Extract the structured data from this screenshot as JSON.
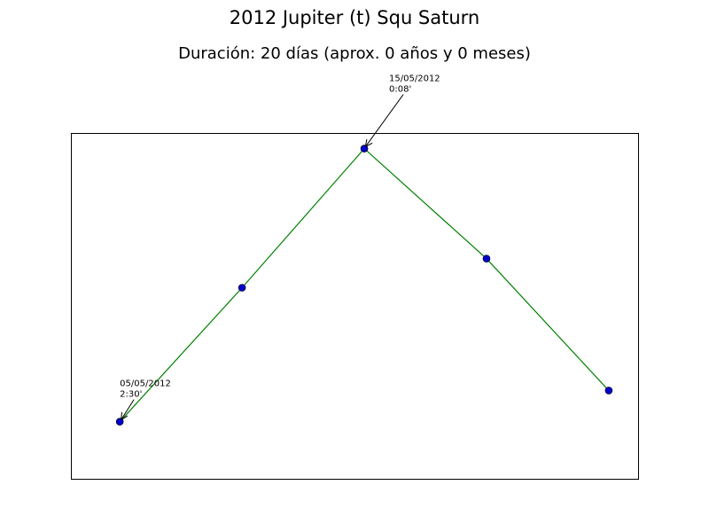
{
  "chart_data": {
    "type": "line",
    "title": "2012 Jupiter (t) Squ Saturn",
    "subtitle": "Duración: 20 días (aprox. 0 años y 0 meses)",
    "xlabel": "",
    "ylabel": "",
    "grid": false,
    "x": [
      0,
      5,
      10,
      15,
      20
    ],
    "values": [
      -2.5,
      -1.21,
      0.13,
      -0.93,
      -2.2
    ],
    "xlim": [
      -2,
      21.2
    ],
    "ylim": [
      -3.05,
      0.28
    ],
    "line_color": "#008000",
    "marker_color": "#0000cc",
    "annotations": [
      {
        "point_index": 0,
        "lines": [
          "05/05/2012",
          "2:30'"
        ]
      },
      {
        "point_index": 2,
        "lines": [
          "15/05/2012",
          "0:08'"
        ]
      }
    ]
  }
}
